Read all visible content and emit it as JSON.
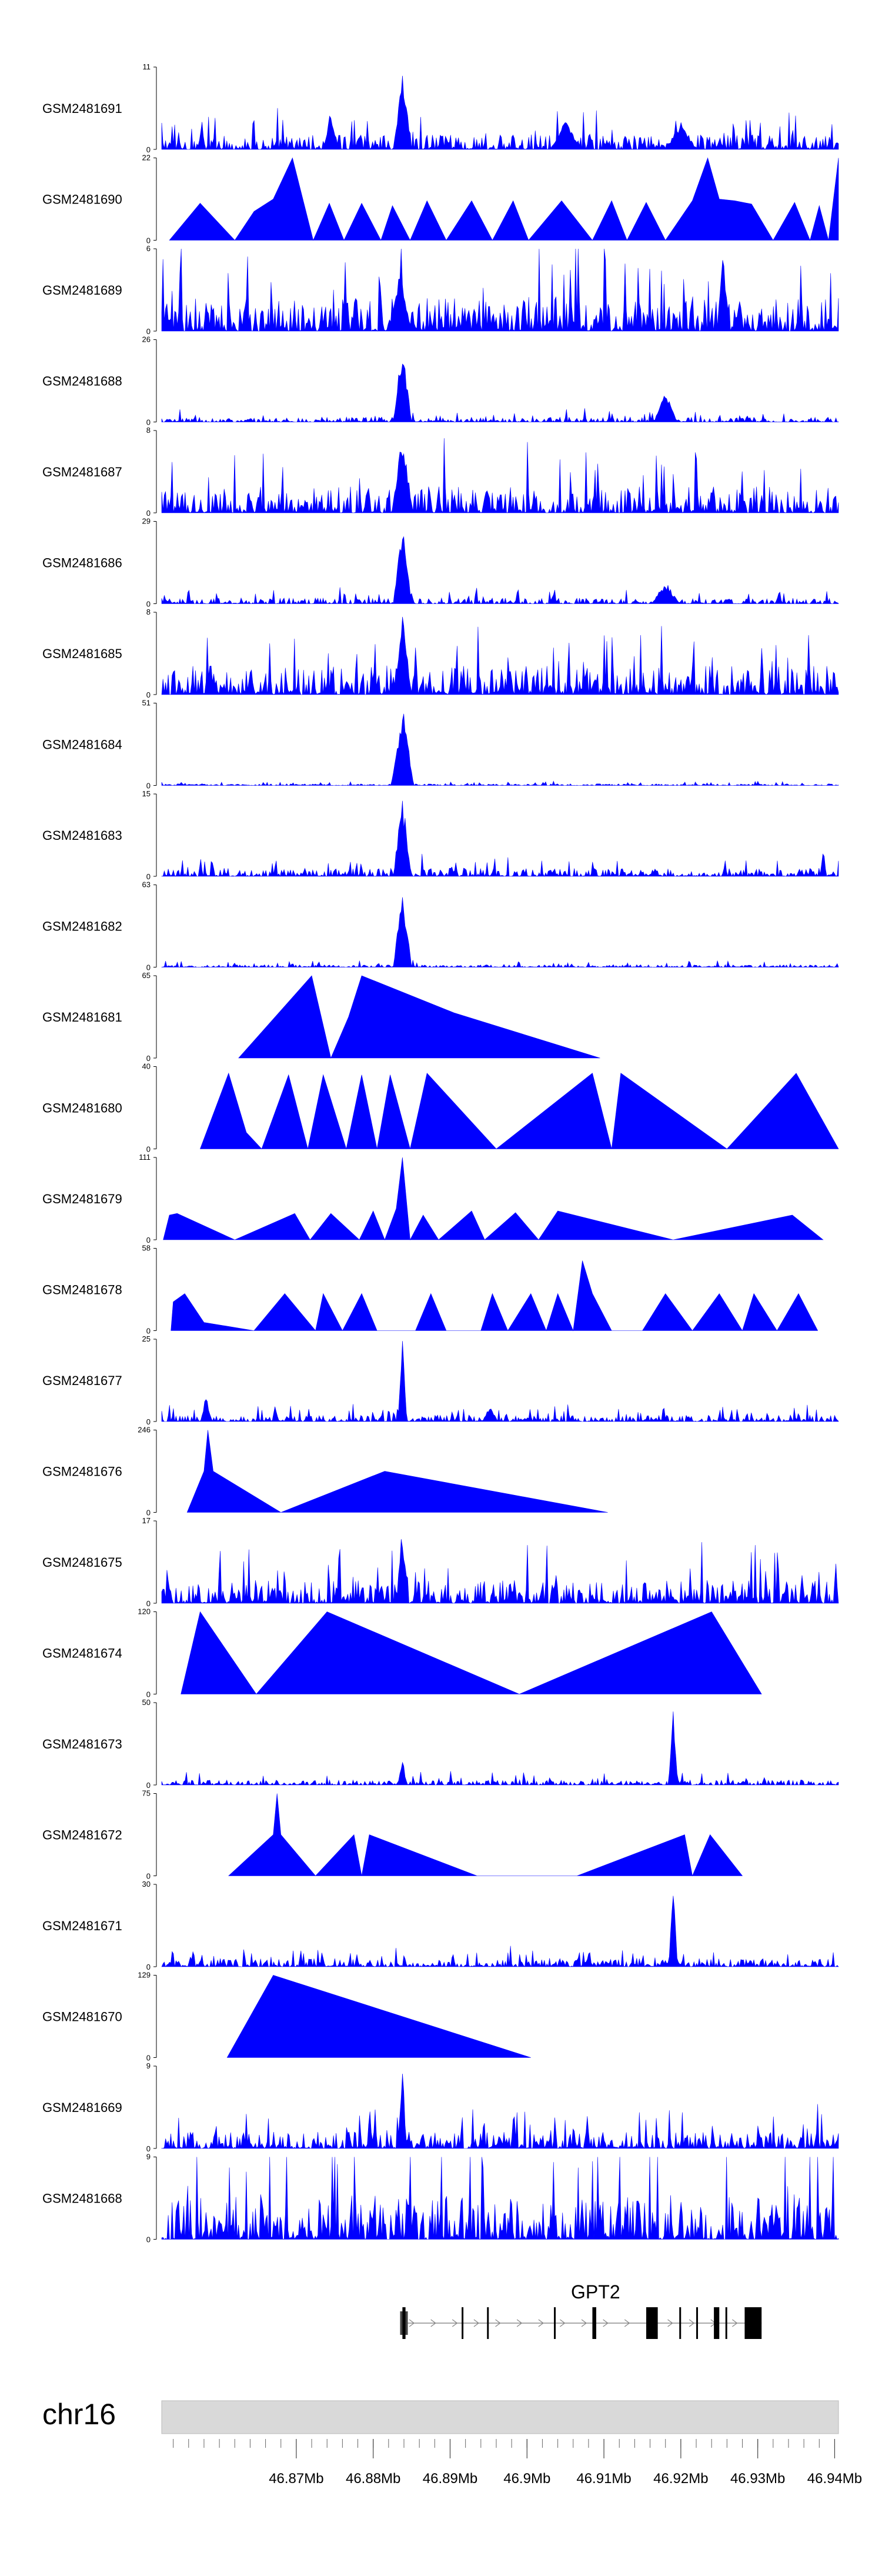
{
  "chart_data": {
    "type": "area",
    "title": "",
    "chromosome": "chr16",
    "xlim": [
      46.8525,
      46.9405
    ],
    "xtick_labels": [
      {
        "value": 46.87,
        "label": "46.87Mb"
      },
      {
        "value": 46.88,
        "label": "46.88Mb"
      },
      {
        "value": 46.89,
        "label": "46.89Mb"
      },
      {
        "value": 46.9,
        "label": "46.9Mb"
      },
      {
        "value": 46.91,
        "label": "46.91Mb"
      },
      {
        "value": 46.92,
        "label": "46.92Mb"
      },
      {
        "value": 46.93,
        "label": "46.93Mb"
      },
      {
        "value": 46.94,
        "label": "46.94Mb"
      }
    ],
    "minor_tick_step": 0.002,
    "gene": {
      "name": "GPT2",
      "start": 46.8835,
      "end": 46.9305,
      "strand": "+",
      "exons": [
        {
          "start": 46.8835,
          "end": 46.8845,
          "type": "utr"
        },
        {
          "start": 46.8838,
          "end": 46.8842,
          "type": "cds"
        },
        {
          "start": 46.8915,
          "end": 46.8917,
          "type": "cds"
        },
        {
          "start": 46.8948,
          "end": 46.895,
          "type": "cds"
        },
        {
          "start": 46.9035,
          "end": 46.9037,
          "type": "cds"
        },
        {
          "start": 46.9085,
          "end": 46.909,
          "type": "cds"
        },
        {
          "start": 46.9155,
          "end": 46.917,
          "type": "cds"
        },
        {
          "start": 46.9198,
          "end": 46.92,
          "type": "cds"
        },
        {
          "start": 46.922,
          "end": 46.9222,
          "type": "cds"
        },
        {
          "start": 46.9243,
          "end": 46.925,
          "type": "cds"
        },
        {
          "start": 46.9258,
          "end": 46.926,
          "type": "cds"
        },
        {
          "start": 46.9283,
          "end": 46.9305,
          "type": "cds"
        }
      ]
    },
    "tracks": [
      {
        "name": "GSM2481691",
        "ymax": 11,
        "kind": "dense",
        "bg": 0.18,
        "peaks": [
          [
            46.8838,
            1.0,
            0.0012
          ],
          [
            46.8745,
            0.5,
            0.001
          ],
          [
            46.905,
            0.35,
            0.002
          ],
          [
            46.92,
            0.35,
            0.002
          ]
        ]
      },
      {
        "name": "GSM2481690",
        "ymax": 22,
        "kind": "sparse",
        "points": [
          [
            46.8535,
            0
          ],
          [
            46.8575,
            0.45
          ],
          [
            46.862,
            0
          ],
          [
            46.8645,
            0.35
          ],
          [
            46.867,
            0.5
          ],
          [
            46.8695,
            1.0
          ],
          [
            46.8722,
            0
          ],
          [
            46.8743,
            0.45
          ],
          [
            46.8762,
            0
          ],
          [
            46.8785,
            0.45
          ],
          [
            46.881,
            0
          ],
          [
            46.8825,
            0.42
          ],
          [
            46.8848,
            0
          ],
          [
            46.887,
            0.48
          ],
          [
            46.8895,
            0
          ],
          [
            46.8928,
            0.48
          ],
          [
            46.8955,
            0
          ],
          [
            46.8982,
            0.48
          ],
          [
            46.9002,
            0
          ],
          [
            46.9045,
            0.48
          ],
          [
            46.9085,
            0
          ],
          [
            46.911,
            0.48
          ],
          [
            46.913,
            0
          ],
          [
            46.9155,
            0.46
          ],
          [
            46.918,
            0
          ],
          [
            46.9215,
            0.48
          ],
          [
            46.9235,
            1.0
          ],
          [
            46.925,
            0.5
          ],
          [
            46.927,
            0.48
          ],
          [
            46.9292,
            0.44
          ],
          [
            46.932,
            0
          ],
          [
            46.9348,
            0.46
          ],
          [
            46.9368,
            0
          ],
          [
            46.938,
            0.42
          ],
          [
            46.9392,
            0
          ],
          [
            46.9405,
            1.0
          ]
        ]
      },
      {
        "name": "GSM2481689",
        "ymax": 6,
        "kind": "dense",
        "bg": 0.42,
        "peaks": [
          [
            46.9255,
            1.0,
            0.0008
          ],
          [
            46.8835,
            0.8,
            0.0015
          ]
        ]
      },
      {
        "name": "GSM2481688",
        "ymax": 26,
        "kind": "dense",
        "bg": 0.06,
        "peaks": [
          [
            46.8838,
            1.0,
            0.0012
          ],
          [
            46.918,
            0.38,
            0.0015
          ]
        ]
      },
      {
        "name": "GSM2481687",
        "ymax": 8,
        "kind": "dense",
        "bg": 0.32,
        "peaks": [
          [
            46.8838,
            1.0,
            0.0014
          ]
        ]
      },
      {
        "name": "GSM2481686",
        "ymax": 29,
        "kind": "dense",
        "bg": 0.07,
        "peaks": [
          [
            46.8838,
            1.0,
            0.0012
          ],
          [
            46.918,
            0.28,
            0.0018
          ]
        ]
      },
      {
        "name": "GSM2481685",
        "ymax": 8,
        "kind": "dense",
        "bg": 0.35,
        "peaks": [
          [
            46.8838,
            1.0,
            0.0012
          ]
        ]
      },
      {
        "name": "GSM2481684",
        "ymax": 51,
        "kind": "dense",
        "bg": 0.02,
        "peaks": [
          [
            46.8838,
            1.0,
            0.0015
          ]
        ]
      },
      {
        "name": "GSM2481683",
        "ymax": 15,
        "kind": "dense",
        "bg": 0.1,
        "peaks": [
          [
            46.8838,
            1.0,
            0.0012
          ],
          [
            46.9385,
            0.4,
            0.0004
          ]
        ]
      },
      {
        "name": "GSM2481682",
        "ymax": 63,
        "kind": "dense",
        "bg": 0.03,
        "peaks": [
          [
            46.8838,
            1.0,
            0.0012
          ]
        ]
      },
      {
        "name": "GSM2481681",
        "ymax": 65,
        "kind": "sparse",
        "points": [
          [
            46.8625,
            0
          ],
          [
            46.872,
            1.0
          ],
          [
            46.8745,
            0
          ],
          [
            46.8768,
            0.5
          ],
          [
            46.8785,
            1.0
          ],
          [
            46.8905,
            0.55
          ],
          [
            46.9095,
            0
          ]
        ]
      },
      {
        "name": "GSM2481680",
        "ymax": 40,
        "kind": "sparse",
        "points": [
          [
            46.8575,
            0
          ],
          [
            46.8612,
            0.92
          ],
          [
            46.8635,
            0.2
          ],
          [
            46.8655,
            0
          ],
          [
            46.869,
            0.9
          ],
          [
            46.8715,
            0
          ],
          [
            46.8735,
            0.9
          ],
          [
            46.8765,
            0
          ],
          [
            46.8785,
            0.9
          ],
          [
            46.8805,
            0
          ],
          [
            46.8822,
            0.9
          ],
          [
            46.8848,
            0
          ],
          [
            46.887,
            0.92
          ],
          [
            46.896,
            0
          ],
          [
            46.9085,
            0.92
          ],
          [
            46.911,
            0
          ],
          [
            46.9122,
            0.92
          ],
          [
            46.926,
            0
          ],
          [
            46.935,
            0.92
          ],
          [
            46.9405,
            0
          ]
        ]
      },
      {
        "name": "GSM2481679",
        "ymax": 111,
        "kind": "sparse",
        "points": [
          [
            46.8527,
            0
          ],
          [
            46.8535,
            0.3
          ],
          [
            46.8545,
            0.32
          ],
          [
            46.862,
            0
          ],
          [
            46.8698,
            0.32
          ],
          [
            46.8718,
            0
          ],
          [
            46.8745,
            0.32
          ],
          [
            46.8782,
            0
          ],
          [
            46.88,
            0.35
          ],
          [
            46.8815,
            0
          ],
          [
            46.883,
            0.38
          ],
          [
            46.8838,
            1.0
          ],
          [
            46.8848,
            0
          ],
          [
            46.8865,
            0.3
          ],
          [
            46.8885,
            0
          ],
          [
            46.8928,
            0.35
          ],
          [
            46.8945,
            0
          ],
          [
            46.8985,
            0.33
          ],
          [
            46.9015,
            0
          ],
          [
            46.904,
            0.35
          ],
          [
            46.919,
            0
          ],
          [
            46.9345,
            0.3
          ],
          [
            46.9385,
            0
          ]
        ]
      },
      {
        "name": "GSM2481678",
        "ymax": 58,
        "kind": "sparse",
        "points": [
          [
            46.8537,
            0
          ],
          [
            46.854,
            0.35
          ],
          [
            46.8555,
            0.45
          ],
          [
            46.858,
            0.1
          ],
          [
            46.8645,
            0
          ],
          [
            46.8685,
            0.45
          ],
          [
            46.8725,
            0
          ],
          [
            46.8735,
            0.45
          ],
          [
            46.876,
            0
          ],
          [
            46.8785,
            0.45
          ],
          [
            46.8805,
            0
          ],
          [
            46.8855,
            0
          ],
          [
            46.8875,
            0.45
          ],
          [
            46.8895,
            0
          ],
          [
            46.894,
            0
          ],
          [
            46.8955,
            0.45
          ],
          [
            46.8975,
            0
          ],
          [
            46.9005,
            0.45
          ],
          [
            46.9025,
            0
          ],
          [
            46.904,
            0.45
          ],
          [
            46.906,
            0
          ],
          [
            46.9072,
            0.85
          ],
          [
            46.9085,
            0.45
          ],
          [
            46.911,
            0
          ],
          [
            46.915,
            0
          ],
          [
            46.918,
            0.45
          ],
          [
            46.9215,
            0
          ],
          [
            46.925,
            0.45
          ],
          [
            46.928,
            0
          ],
          [
            46.9295,
            0.45
          ],
          [
            46.9325,
            0
          ],
          [
            46.9353,
            0.45
          ],
          [
            46.9378,
            0
          ]
        ]
      },
      {
        "name": "GSM2481677",
        "ymax": 25,
        "kind": "dense",
        "bg": 0.08,
        "peaks": [
          [
            46.8838,
            1.0,
            0.0006
          ],
          [
            46.8583,
            0.4,
            0.0006
          ],
          [
            46.8952,
            0.2,
            0.001
          ]
        ]
      },
      {
        "name": "GSM2481676",
        "ymax": 246,
        "kind": "sparse",
        "points": [
          [
            46.8558,
            0
          ],
          [
            46.858,
            0.5
          ],
          [
            46.8585,
            1.0
          ],
          [
            46.8592,
            0.5
          ],
          [
            46.868,
            0
          ],
          [
            46.8815,
            0.5
          ],
          [
            46.9105,
            0
          ]
        ]
      },
      {
        "name": "GSM2481675",
        "ymax": 17,
        "kind": "dense",
        "bg": 0.28,
        "peaks": [
          [
            46.8838,
            1.0,
            0.0008
          ]
        ]
      },
      {
        "name": "GSM2481674",
        "ymax": 120,
        "kind": "sparse",
        "points": [
          [
            46.855,
            0
          ],
          [
            46.8575,
            1.0
          ],
          [
            46.8648,
            0
          ],
          [
            46.874,
            1.0
          ],
          [
            46.899,
            0
          ],
          [
            46.924,
            1.0
          ],
          [
            46.9305,
            0
          ]
        ]
      },
      {
        "name": "GSM2481673",
        "ymax": 50,
        "kind": "dense",
        "bg": 0.06,
        "peaks": [
          [
            46.919,
            1.0,
            0.0006
          ],
          [
            46.8838,
            0.35,
            0.0006
          ]
        ]
      },
      {
        "name": "GSM2481672",
        "ymax": 75,
        "kind": "sparse",
        "points": [
          [
            46.8612,
            0
          ],
          [
            46.867,
            0.5
          ],
          [
            46.8675,
            1.0
          ],
          [
            46.868,
            0.5
          ],
          [
            46.8725,
            0
          ],
          [
            46.8775,
            0.5
          ],
          [
            46.8785,
            0
          ],
          [
            46.8795,
            0.5
          ],
          [
            46.8935,
            0
          ],
          [
            46.9065,
            0
          ],
          [
            46.9205,
            0.5
          ],
          [
            46.9215,
            0
          ],
          [
            46.9238,
            0.5
          ],
          [
            46.928,
            0
          ]
        ]
      },
      {
        "name": "GSM2481671",
        "ymax": 30,
        "kind": "dense",
        "bg": 0.1,
        "peaks": [
          [
            46.919,
            1.0,
            0.0006
          ]
        ]
      },
      {
        "name": "GSM2481670",
        "ymax": 129,
        "kind": "sparse",
        "points": [
          [
            46.861,
            0
          ],
          [
            46.867,
            1.0
          ],
          [
            46.9005,
            0
          ]
        ]
      },
      {
        "name": "GSM2481669",
        "ymax": 9,
        "kind": "dense",
        "bg": 0.2,
        "peaks": [
          [
            46.8838,
            1.0,
            0.0006
          ]
        ]
      },
      {
        "name": "GSM2481668",
        "ymax": 9,
        "kind": "dense",
        "bg": 0.55,
        "peaks": []
      }
    ],
    "ymin_label": "0"
  }
}
